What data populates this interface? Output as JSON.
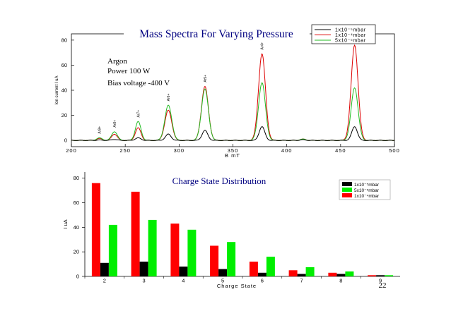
{
  "slide": {
    "page_number": "22"
  },
  "chart_data": [
    {
      "type": "line",
      "title": "Mass Spectra For Varying Pressure",
      "xlabel": "B mT",
      "ylabel": "Ion current I uA",
      "xlim": [
        200,
        500
      ],
      "ylim": [
        -5,
        85
      ],
      "xticks": [
        200,
        250,
        300,
        350,
        400,
        450,
        500
      ],
      "yticks": [
        0,
        20,
        40,
        60,
        80
      ],
      "annotations_text": [
        "Argon",
        "Power 100 W",
        "Bias voltage -400 V"
      ],
      "peak_labels": [
        {
          "label": "Ar9+",
          "x": 226
        },
        {
          "label": "Ar8+",
          "x": 240
        },
        {
          "label": "Ar7+",
          "x": 262
        },
        {
          "label": "Ar6+",
          "x": 290
        },
        {
          "label": "Ar5+",
          "x": 324
        },
        {
          "label": "Ar4+",
          "x": 377
        },
        {
          "label": "Ar3+",
          "x": 463
        }
      ],
      "legend": [
        "1x10⁻⁵mbar",
        "1x10⁻⁴mbar",
        "5x10⁻⁵mbar"
      ],
      "series": [
        {
          "name": "1x10⁻⁵mbar",
          "color": "#000000",
          "peaks": [
            [
              226,
              0.3
            ],
            [
              240,
              0.8
            ],
            [
              262,
              2
            ],
            [
              290,
              5
            ],
            [
              324,
              8
            ],
            [
              377,
              11
            ],
            [
              415,
              0.5
            ],
            [
              463,
              11
            ]
          ]
        },
        {
          "name": "1x10⁻⁴mbar",
          "color": "#dd0000",
          "peaks": [
            [
              226,
              1.5
            ],
            [
              240,
              5
            ],
            [
              262,
              10
            ],
            [
              290,
              24
            ],
            [
              324,
              43
            ],
            [
              377,
              69
            ],
            [
              415,
              1
            ],
            [
              463,
              76
            ]
          ]
        },
        {
          "name": "5x10⁻⁵mbar",
          "color": "#22bb22",
          "peaks": [
            [
              226,
              2
            ],
            [
              240,
              7
            ],
            [
              262,
              15
            ],
            [
              290,
              28
            ],
            [
              324,
              41
            ],
            [
              377,
              46
            ],
            [
              415,
              1
            ],
            [
              463,
              42
            ]
          ]
        }
      ]
    },
    {
      "type": "bar",
      "title": "Charge State Distribution",
      "xlabel": "Charge State",
      "ylabel": "I uA",
      "ylim": [
        0,
        85
      ],
      "yticks": [
        0,
        20,
        40,
        60,
        80
      ],
      "categories": [
        "2",
        "3",
        "4",
        "5",
        "6",
        "7",
        "8",
        "9"
      ],
      "legend": [
        "1x10⁻⁵mbar",
        "5x10⁻⁵mbar",
        "1x10⁻⁴mbar"
      ],
      "series": [
        {
          "name": "1x10⁻⁴mbar",
          "color": "#ff0000",
          "values": [
            76,
            69,
            43,
            25,
            12,
            5,
            3,
            1
          ]
        },
        {
          "name": "1x10⁻⁵mbar",
          "color": "#000000",
          "values": [
            11,
            12,
            8,
            6,
            3,
            2,
            2,
            1
          ]
        },
        {
          "name": "5x10⁻⁵mbar",
          "color": "#00ee00",
          "values": [
            42,
            46,
            38,
            28,
            16,
            7.5,
            4,
            1
          ]
        }
      ]
    }
  ]
}
